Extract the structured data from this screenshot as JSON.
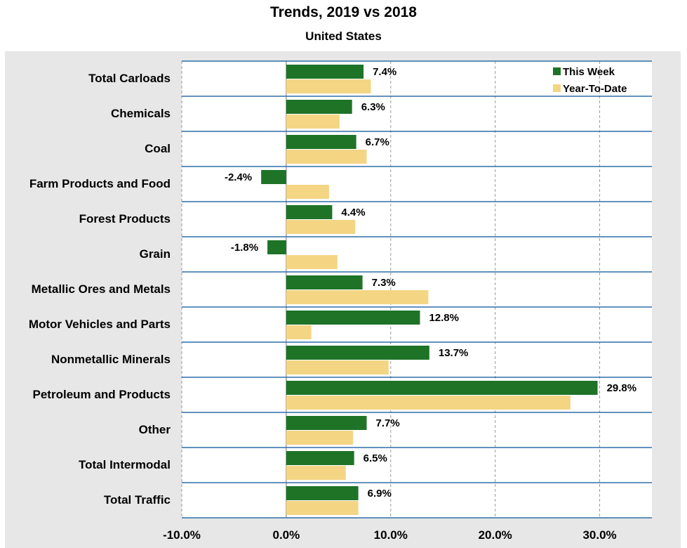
{
  "chart_data": {
    "type": "bar",
    "orientation": "horizontal",
    "title": "Trends, 2019 vs 2018",
    "subtitle": "United States",
    "categories": [
      "Total Carloads",
      "Chemicals",
      "Coal",
      "Farm Products and Food",
      "Forest Products",
      "Grain",
      "Metallic Ores and Metals",
      "Motor Vehicles and Parts",
      "Nonmetallic Minerals",
      "Petroleum and Products",
      "Other",
      "Total Intermodal",
      "Total Traffic"
    ],
    "series": [
      {
        "name": "This Week",
        "color": "#1e7327",
        "values": [
          7.4,
          6.3,
          6.7,
          -2.4,
          4.4,
          -1.8,
          7.3,
          12.8,
          13.7,
          29.8,
          7.7,
          6.5,
          6.9
        ],
        "labels": [
          "7.4%",
          "6.3%",
          "6.7%",
          "-2.4%",
          "4.4%",
          "-1.8%",
          "7.3%",
          "12.8%",
          "13.7%",
          "29.8%",
          "7.7%",
          "6.5%",
          "6.9%"
        ]
      },
      {
        "name": "Year-To-Date",
        "color": "#f3d584",
        "values": [
          8.1,
          5.1,
          7.7,
          4.1,
          6.6,
          4.9,
          13.6,
          2.4,
          9.8,
          27.2,
          6.4,
          5.7,
          6.9
        ]
      }
    ],
    "xlim": [
      -10,
      35
    ],
    "xticks": [
      -10,
      0,
      10,
      20,
      30
    ],
    "xtick_labels": [
      "-10.0%",
      "0.0%",
      "10.0%",
      "20.0%",
      "30.0%"
    ],
    "xlabel": "",
    "ylabel": "",
    "grid": true,
    "legend_position": "top-right"
  }
}
